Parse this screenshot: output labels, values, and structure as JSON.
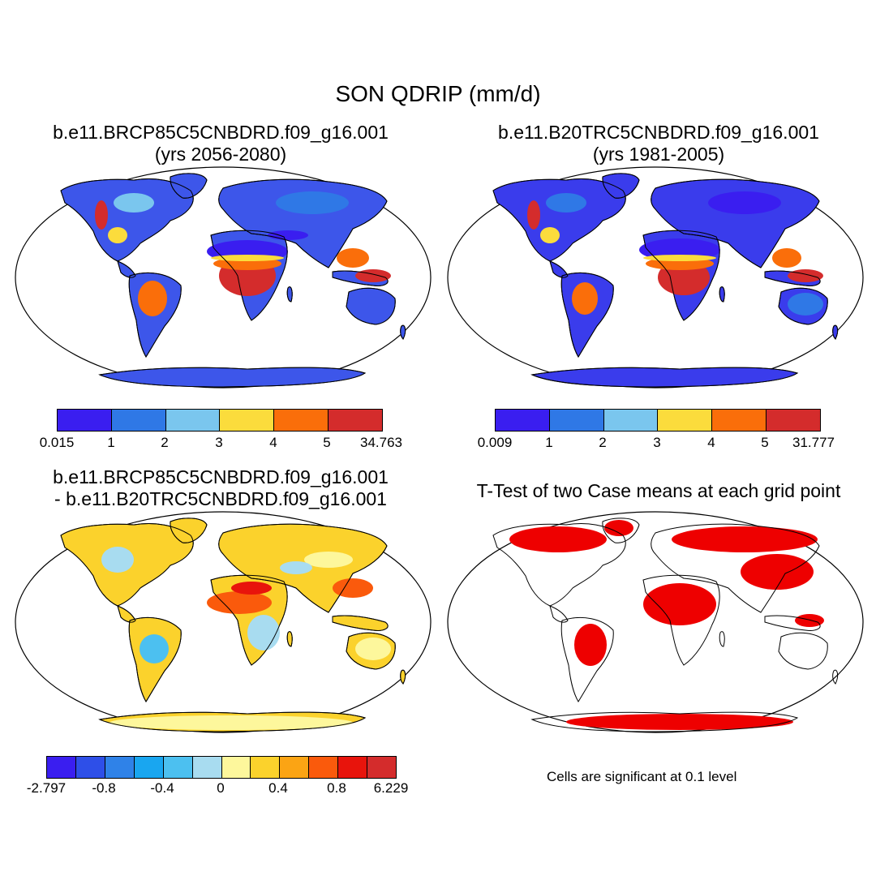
{
  "figure_title": "SON QDRIP (mm/d)",
  "panels": {
    "top_left": {
      "title_line1": "b.e11.BRCP85C5CNBDRD.f09_g16.001",
      "title_line2": "(yrs 2056-2080)",
      "colorbar": {
        "colors": [
          "#3a1ef0",
          "#2f78e6",
          "#7ac6ee",
          "#fbdc3c",
          "#fa6e0a",
          "#d42c2c"
        ],
        "labels": [
          "0.015",
          "1",
          "2",
          "3",
          "4",
          "5",
          "34.763"
        ]
      }
    },
    "top_right": {
      "title_line1": "b.e11.B20TRC5CNBDRD.f09_g16.001",
      "title_line2": "(yrs 1981-2005)",
      "colorbar": {
        "colors": [
          "#3a1ef0",
          "#2f78e6",
          "#7ac6ee",
          "#fbdc3c",
          "#fa6e0a",
          "#d42c2c"
        ],
        "labels": [
          "0.009",
          "1",
          "2",
          "3",
          "4",
          "5",
          "31.777"
        ]
      }
    },
    "bottom_left": {
      "title_line1": "b.e11.BRCP85C5CNBDRD.f09_g16.001",
      "title_line2": "- b.e11.B20TRC5CNBDRD.f09_g16.001",
      "colorbar": {
        "colors": [
          "#3a1ef0",
          "#2e4fe8",
          "#2f82e8",
          "#19a6f0",
          "#4cc0f0",
          "#a8dcf0",
          "#fdf79c",
          "#fbd22c",
          "#fba414",
          "#fa5a0c",
          "#e8140c",
          "#d42c2c"
        ],
        "labels": [
          "-2.797",
          "-0.8",
          "-0.4",
          "0",
          "0.4",
          "0.8",
          "6.229"
        ]
      }
    },
    "bottom_right": {
      "title_line1": "T-Test of two Case means at each grid point",
      "note": "Cells are significant at 0.1 level"
    }
  }
}
